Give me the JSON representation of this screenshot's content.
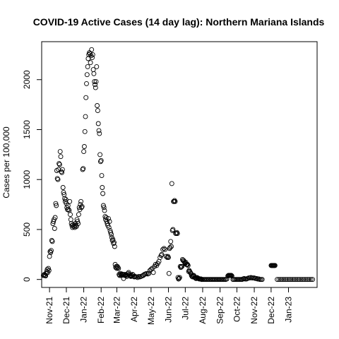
{
  "chart_data": {
    "type": "scatter",
    "title": "COVID-19 Active Cases (14 day lag): Northern Mariana Islands",
    "xlabel": "",
    "ylabel": "Cases per 100,000",
    "marker": "open-circle",
    "marker_color": "#000000",
    "ylim": [
      -80,
      2380
    ],
    "yticks": [
      0,
      500,
      1000,
      1500,
      2000
    ],
    "xlim": [
      "2021-10-18",
      "2023-02-21"
    ],
    "xticks": [
      {
        "date": "2021-11-01",
        "label": "Nov-21"
      },
      {
        "date": "2021-12-01",
        "label": "Dec-21"
      },
      {
        "date": "2022-01-01",
        "label": "Jan-22"
      },
      {
        "date": "2022-02-01",
        "label": "Feb-22"
      },
      {
        "date": "2022-03-01",
        "label": "Mar-22"
      },
      {
        "date": "2022-04-01",
        "label": "Apr-22"
      },
      {
        "date": "2022-05-01",
        "label": "May-22"
      },
      {
        "date": "2022-06-01",
        "label": "Jun-22"
      },
      {
        "date": "2022-07-01",
        "label": "Jul-22"
      },
      {
        "date": "2022-08-01",
        "label": "Aug-22"
      },
      {
        "date": "2022-09-01",
        "label": "Sep-22"
      },
      {
        "date": "2022-10-01",
        "label": "Oct-22"
      },
      {
        "date": "2022-11-01",
        "label": "Nov-22"
      },
      {
        "date": "2022-12-01",
        "label": "Dec-22"
      },
      {
        "date": "2023-01-01",
        "label": "Jan-23"
      }
    ],
    "grid": false,
    "points": [
      [
        "2021-10-21",
        40
      ],
      [
        "2021-10-22",
        45
      ],
      [
        "2021-10-23",
        50
      ],
      [
        "2021-10-24",
        40
      ],
      [
        "2021-10-25",
        35
      ],
      [
        "2021-10-26",
        60
      ],
      [
        "2021-10-27",
        80
      ],
      [
        "2021-10-28",
        100
      ],
      [
        "2021-10-29",
        70
      ],
      [
        "2021-10-30",
        110
      ],
      [
        "2021-10-31",
        90
      ],
      [
        "2021-11-01",
        230
      ],
      [
        "2021-11-02",
        280
      ],
      [
        "2021-11-03",
        270
      ],
      [
        "2021-11-04",
        290
      ],
      [
        "2021-11-05",
        390
      ],
      [
        "2021-11-06",
        380
      ],
      [
        "2021-11-07",
        560
      ],
      [
        "2021-11-08",
        580
      ],
      [
        "2021-11-09",
        600
      ],
      [
        "2021-11-10",
        510
      ],
      [
        "2021-11-11",
        620
      ],
      [
        "2021-11-12",
        760
      ],
      [
        "2021-11-13",
        740
      ],
      [
        "2021-11-14",
        1090
      ],
      [
        "2021-11-15",
        1010
      ],
      [
        "2021-11-16",
        1000
      ],
      [
        "2021-11-17",
        1100
      ],
      [
        "2021-11-18",
        1160
      ],
      [
        "2021-11-19",
        1150
      ],
      [
        "2021-11-20",
        1280
      ],
      [
        "2021-11-21",
        1230
      ],
      [
        "2021-11-22",
        1080
      ],
      [
        "2021-11-23",
        1070
      ],
      [
        "2021-11-24",
        1100
      ],
      [
        "2021-11-25",
        920
      ],
      [
        "2021-11-26",
        870
      ],
      [
        "2021-11-27",
        850
      ],
      [
        "2021-11-28",
        810
      ],
      [
        "2021-11-29",
        780
      ],
      [
        "2021-11-30",
        800
      ],
      [
        "2021-12-01",
        760
      ],
      [
        "2021-12-02",
        720
      ],
      [
        "2021-12-03",
        700
      ],
      [
        "2021-12-04",
        740
      ],
      [
        "2021-12-05",
        700
      ],
      [
        "2021-12-06",
        690
      ],
      [
        "2021-12-07",
        780
      ],
      [
        "2021-12-08",
        650
      ],
      [
        "2021-12-09",
        600
      ],
      [
        "2021-12-10",
        560
      ],
      [
        "2021-12-11",
        540
      ],
      [
        "2021-12-12",
        520
      ],
      [
        "2021-12-13",
        550
      ],
      [
        "2021-12-14",
        530
      ],
      [
        "2021-12-15",
        540
      ],
      [
        "2021-12-16",
        520
      ],
      [
        "2021-12-17",
        560
      ],
      [
        "2021-12-18",
        540
      ],
      [
        "2021-12-19",
        530
      ],
      [
        "2021-12-20",
        600
      ],
      [
        "2021-12-21",
        580
      ],
      [
        "2021-12-22",
        560
      ],
      [
        "2021-12-23",
        650
      ],
      [
        "2021-12-24",
        720
      ],
      [
        "2021-12-25",
        700
      ],
      [
        "2021-12-26",
        750
      ],
      [
        "2021-12-27",
        780
      ],
      [
        "2021-12-28",
        720
      ],
      [
        "2021-12-29",
        730
      ],
      [
        "2021-12-30",
        1100
      ],
      [
        "2021-12-31",
        1110
      ],
      [
        "2022-01-01",
        1280
      ],
      [
        "2022-01-02",
        1330
      ],
      [
        "2022-01-03",
        1480
      ],
      [
        "2022-01-04",
        1630
      ],
      [
        "2022-01-05",
        1820
      ],
      [
        "2022-01-06",
        1960
      ],
      [
        "2022-01-07",
        2050
      ],
      [
        "2022-01-08",
        2130
      ],
      [
        "2022-01-09",
        2210
      ],
      [
        "2022-01-10",
        2250
      ],
      [
        "2022-01-11",
        2270
      ],
      [
        "2022-01-12",
        2260
      ],
      [
        "2022-01-13",
        2170
      ],
      [
        "2022-01-14",
        2240
      ],
      [
        "2022-01-15",
        2300
      ],
      [
        "2022-01-16",
        2220
      ],
      [
        "2022-01-17",
        2250
      ],
      [
        "2022-01-18",
        2100
      ],
      [
        "2022-01-19",
        2060
      ],
      [
        "2022-01-20",
        1980
      ],
      [
        "2022-01-21",
        1950
      ],
      [
        "2022-01-22",
        1920
      ],
      [
        "2022-01-23",
        1980
      ],
      [
        "2022-01-24",
        2130
      ],
      [
        "2022-01-25",
        1740
      ],
      [
        "2022-01-26",
        1690
      ],
      [
        "2022-01-27",
        1560
      ],
      [
        "2022-01-28",
        1490
      ],
      [
        "2022-01-29",
        1460
      ],
      [
        "2022-01-30",
        1250
      ],
      [
        "2022-01-31",
        1180
      ],
      [
        "2022-02-01",
        1190
      ],
      [
        "2022-02-02",
        1040
      ],
      [
        "2022-02-03",
        920
      ],
      [
        "2022-02-04",
        860
      ],
      [
        "2022-02-05",
        740
      ],
      [
        "2022-02-06",
        720
      ],
      [
        "2022-02-07",
        690
      ],
      [
        "2022-02-08",
        630
      ],
      [
        "2022-02-09",
        600
      ],
      [
        "2022-02-10",
        620
      ],
      [
        "2022-02-11",
        580
      ],
      [
        "2022-02-12",
        560
      ],
      [
        "2022-02-13",
        540
      ],
      [
        "2022-02-14",
        610
      ],
      [
        "2022-02-15",
        520
      ],
      [
        "2022-02-16",
        580
      ],
      [
        "2022-02-17",
        490
      ],
      [
        "2022-02-18",
        470
      ],
      [
        "2022-02-19",
        450
      ],
      [
        "2022-02-20",
        420
      ],
      [
        "2022-02-21",
        390
      ],
      [
        "2022-02-22",
        400
      ],
      [
        "2022-02-23",
        360
      ],
      [
        "2022-02-24",
        370
      ],
      [
        "2022-02-25",
        330
      ],
      [
        "2022-02-26",
        150
      ],
      [
        "2022-02-27",
        120
      ],
      [
        "2022-02-28",
        130
      ],
      [
        "2022-03-01",
        110
      ],
      [
        "2022-03-02",
        130
      ],
      [
        "2022-03-03",
        120
      ],
      [
        "2022-03-04",
        110
      ],
      [
        "2022-03-05",
        50
      ],
      [
        "2022-03-06",
        40
      ],
      [
        "2022-03-07",
        60
      ],
      [
        "2022-03-08",
        50
      ],
      [
        "2022-03-09",
        40
      ],
      [
        "2022-03-10",
        55
      ],
      [
        "2022-03-11",
        50
      ],
      [
        "2022-03-12",
        45
      ],
      [
        "2022-03-13",
        10
      ],
      [
        "2022-03-14",
        50
      ],
      [
        "2022-03-15",
        40
      ],
      [
        "2022-03-16",
        45
      ],
      [
        "2022-03-17",
        50
      ],
      [
        "2022-03-18",
        40
      ],
      [
        "2022-03-19",
        30
      ],
      [
        "2022-03-20",
        45
      ],
      [
        "2022-03-21",
        60
      ],
      [
        "2022-03-22",
        70
      ],
      [
        "2022-03-23",
        50
      ],
      [
        "2022-03-24",
        40
      ],
      [
        "2022-03-25",
        35
      ],
      [
        "2022-03-26",
        30
      ],
      [
        "2022-03-27",
        40
      ],
      [
        "2022-03-28",
        35
      ],
      [
        "2022-03-29",
        50
      ],
      [
        "2022-03-30",
        45
      ],
      [
        "2022-03-31",
        30
      ],
      [
        "2022-04-01",
        25
      ],
      [
        "2022-04-03",
        30
      ],
      [
        "2022-04-05",
        25
      ],
      [
        "2022-04-07",
        20
      ],
      [
        "2022-04-09",
        30
      ],
      [
        "2022-04-11",
        25
      ],
      [
        "2022-04-13",
        30
      ],
      [
        "2022-04-15",
        35
      ],
      [
        "2022-04-17",
        40
      ],
      [
        "2022-04-19",
        50
      ],
      [
        "2022-04-21",
        55
      ],
      [
        "2022-04-23",
        60
      ],
      [
        "2022-04-25",
        55
      ],
      [
        "2022-04-27",
        60
      ],
      [
        "2022-04-29",
        90
      ],
      [
        "2022-05-01",
        100
      ],
      [
        "2022-05-03",
        110
      ],
      [
        "2022-05-05",
        70
      ],
      [
        "2022-05-07",
        130
      ],
      [
        "2022-05-09",
        150
      ],
      [
        "2022-05-11",
        140
      ],
      [
        "2022-05-13",
        160
      ],
      [
        "2022-05-15",
        180
      ],
      [
        "2022-05-17",
        220
      ],
      [
        "2022-05-19",
        240
      ],
      [
        "2022-05-20",
        250
      ],
      [
        "2022-05-22",
        300
      ],
      [
        "2022-05-24",
        310
      ],
      [
        "2022-05-26",
        300
      ],
      [
        "2022-05-28",
        230
      ],
      [
        "2022-05-30",
        220
      ],
      [
        "2022-05-31",
        230
      ],
      [
        "2022-06-01",
        220
      ],
      [
        "2022-06-02",
        60
      ],
      [
        "2022-06-03",
        310
      ],
      [
        "2022-06-04",
        320
      ],
      [
        "2022-06-05",
        380
      ],
      [
        "2022-06-06",
        330
      ],
      [
        "2022-06-07",
        960
      ],
      [
        "2022-06-08",
        490
      ],
      [
        "2022-06-09",
        500
      ],
      [
        "2022-06-10",
        780
      ],
      [
        "2022-06-11",
        780
      ],
      [
        "2022-06-12",
        790
      ],
      [
        "2022-06-13",
        780
      ],
      [
        "2022-06-14",
        460
      ],
      [
        "2022-06-15",
        460
      ],
      [
        "2022-06-16",
        470
      ],
      [
        "2022-06-17",
        460
      ],
      [
        "2022-06-18",
        20
      ],
      [
        "2022-06-19",
        5
      ],
      [
        "2022-06-20",
        10
      ],
      [
        "2022-06-21",
        20
      ],
      [
        "2022-06-22",
        130
      ],
      [
        "2022-06-23",
        120
      ],
      [
        "2022-06-24",
        130
      ],
      [
        "2022-06-25",
        130
      ],
      [
        "2022-06-26",
        200
      ],
      [
        "2022-06-27",
        190
      ],
      [
        "2022-06-28",
        190
      ],
      [
        "2022-06-29",
        180
      ],
      [
        "2022-06-30",
        170
      ],
      [
        "2022-07-01",
        160
      ],
      [
        "2022-07-02",
        170
      ],
      [
        "2022-07-03",
        150
      ],
      [
        "2022-07-04",
        150
      ],
      [
        "2022-07-05",
        150
      ],
      [
        "2022-07-06",
        140
      ],
      [
        "2022-07-07",
        80
      ],
      [
        "2022-07-08",
        90
      ],
      [
        "2022-07-09",
        80
      ],
      [
        "2022-07-10",
        70
      ],
      [
        "2022-07-11",
        60
      ],
      [
        "2022-07-12",
        40
      ],
      [
        "2022-07-13",
        30
      ],
      [
        "2022-07-14",
        25
      ],
      [
        "2022-07-15",
        35
      ],
      [
        "2022-07-16",
        40
      ],
      [
        "2022-07-17",
        30
      ],
      [
        "2022-07-18",
        20
      ],
      [
        "2022-07-19",
        15
      ],
      [
        "2022-07-20",
        10
      ],
      [
        "2022-07-21",
        10
      ],
      [
        "2022-07-22",
        20
      ],
      [
        "2022-07-23",
        15
      ],
      [
        "2022-07-24",
        10
      ],
      [
        "2022-07-25",
        10
      ],
      [
        "2022-07-26",
        5
      ],
      [
        "2022-07-27",
        5
      ],
      [
        "2022-07-28",
        5
      ],
      [
        "2022-07-29",
        5
      ],
      [
        "2022-07-30",
        0
      ],
      [
        "2022-07-31",
        0
      ],
      [
        "2022-08-02",
        0
      ],
      [
        "2022-08-04",
        0
      ],
      [
        "2022-08-06",
        0
      ],
      [
        "2022-08-08",
        0
      ],
      [
        "2022-08-10",
        0
      ],
      [
        "2022-08-12",
        0
      ],
      [
        "2022-08-14",
        0
      ],
      [
        "2022-08-16",
        0
      ],
      [
        "2022-08-18",
        0
      ],
      [
        "2022-08-20",
        0
      ],
      [
        "2022-08-22",
        0
      ],
      [
        "2022-08-24",
        0
      ],
      [
        "2022-08-26",
        0
      ],
      [
        "2022-08-28",
        0
      ],
      [
        "2022-08-30",
        0
      ],
      [
        "2022-09-01",
        0
      ],
      [
        "2022-09-03",
        0
      ],
      [
        "2022-09-05",
        0
      ],
      [
        "2022-09-07",
        0
      ],
      [
        "2022-09-09",
        0
      ],
      [
        "2022-09-11",
        0
      ],
      [
        "2022-09-13",
        5
      ],
      [
        "2022-09-15",
        35
      ],
      [
        "2022-09-16",
        40
      ],
      [
        "2022-09-17",
        40
      ],
      [
        "2022-09-18",
        40
      ],
      [
        "2022-09-19",
        40
      ],
      [
        "2022-09-20",
        40
      ],
      [
        "2022-09-21",
        40
      ],
      [
        "2022-09-22",
        35
      ],
      [
        "2022-09-24",
        0
      ],
      [
        "2022-09-26",
        0
      ],
      [
        "2022-09-28",
        0
      ],
      [
        "2022-09-30",
        0
      ],
      [
        "2022-10-02",
        0
      ],
      [
        "2022-10-04",
        0
      ],
      [
        "2022-10-06",
        0
      ],
      [
        "2022-10-08",
        0
      ],
      [
        "2022-10-10",
        0
      ],
      [
        "2022-10-12",
        5
      ],
      [
        "2022-10-14",
        10
      ],
      [
        "2022-10-16",
        5
      ],
      [
        "2022-10-18",
        5
      ],
      [
        "2022-10-20",
        10
      ],
      [
        "2022-10-22",
        15
      ],
      [
        "2022-10-24",
        15
      ],
      [
        "2022-10-26",
        20
      ],
      [
        "2022-10-28",
        15
      ],
      [
        "2022-10-30",
        15
      ],
      [
        "2022-11-01",
        15
      ],
      [
        "2022-11-03",
        10
      ],
      [
        "2022-11-05",
        10
      ],
      [
        "2022-11-07",
        5
      ],
      [
        "2022-11-09",
        5
      ],
      [
        "2022-11-11",
        0
      ],
      [
        "2022-11-13",
        0
      ],
      [
        "2022-11-15",
        0
      ],
      [
        "2022-12-01",
        140
      ],
      [
        "2022-12-02",
        140
      ],
      [
        "2022-12-03",
        140
      ],
      [
        "2022-12-04",
        140
      ],
      [
        "2022-12-05",
        140
      ],
      [
        "2022-12-06",
        140
      ],
      [
        "2022-12-07",
        140
      ],
      [
        "2022-12-08",
        140
      ],
      [
        "2022-12-12",
        0
      ],
      [
        "2022-12-15",
        0
      ],
      [
        "2022-12-18",
        0
      ],
      [
        "2022-12-21",
        0
      ],
      [
        "2022-12-24",
        0
      ],
      [
        "2022-12-27",
        0
      ],
      [
        "2022-12-30",
        0
      ],
      [
        "2023-01-02",
        0
      ],
      [
        "2023-01-05",
        0
      ],
      [
        "2023-01-08",
        0
      ],
      [
        "2023-01-11",
        0
      ],
      [
        "2023-01-14",
        0
      ],
      [
        "2023-01-17",
        0
      ],
      [
        "2023-01-20",
        0
      ],
      [
        "2023-01-23",
        0
      ],
      [
        "2023-01-26",
        0
      ],
      [
        "2023-01-29",
        0
      ],
      [
        "2023-02-01",
        0
      ],
      [
        "2023-02-04",
        0
      ],
      [
        "2023-02-07",
        0
      ],
      [
        "2023-02-10",
        0
      ],
      [
        "2023-02-13",
        0
      ]
    ]
  }
}
